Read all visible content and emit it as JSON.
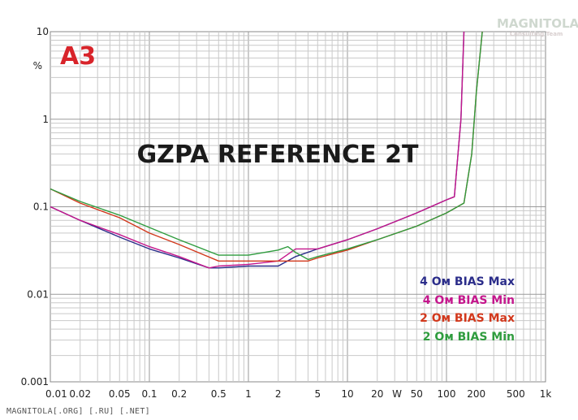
{
  "chart_data": {
    "type": "line",
    "title": "GZPA REFERENCE 2T",
    "xlabel": "W",
    "ylabel": "%",
    "x_scale": "log",
    "y_scale": "log",
    "xlim": [
      0.01,
      1000
    ],
    "ylim": [
      0.001,
      10
    ],
    "grid": true,
    "legend_position": "right-center",
    "x_ticks": [
      "0.01",
      "0.02",
      "0.05",
      "0.1",
      "0.2",
      "0.5",
      "1",
      "2",
      "5",
      "10",
      "20",
      "50",
      "100",
      "200",
      "500",
      "1k"
    ],
    "y_ticks": [
      "0.001",
      "0.01",
      "0.1",
      "1",
      "10"
    ],
    "series": [
      {
        "name": "4 Ом BIAS Max",
        "color": "#2b2d8a",
        "x": [
          0.01,
          0.02,
          0.05,
          0.1,
          0.2,
          0.4,
          0.5,
          1,
          2,
          3,
          5,
          10,
          20,
          50,
          100,
          120,
          140,
          150
        ],
        "y": [
          0.1,
          0.07,
          0.045,
          0.033,
          0.026,
          0.02,
          0.02,
          0.021,
          0.021,
          0.027,
          0.033,
          0.042,
          0.056,
          0.085,
          0.12,
          0.13,
          1.0,
          10
        ]
      },
      {
        "name": "4 Ом BIAS Min",
        "color": "#c4168c",
        "x": [
          0.01,
          0.02,
          0.05,
          0.1,
          0.2,
          0.4,
          0.5,
          1,
          2,
          3,
          5,
          10,
          20,
          50,
          100,
          120,
          140,
          150
        ],
        "y": [
          0.1,
          0.07,
          0.048,
          0.035,
          0.027,
          0.02,
          0.021,
          0.022,
          0.024,
          0.033,
          0.033,
          0.042,
          0.056,
          0.085,
          0.12,
          0.13,
          1.0,
          10
        ]
      },
      {
        "name": "2 Ом BIAS Max",
        "color": "#d2381c",
        "x": [
          0.01,
          0.02,
          0.05,
          0.1,
          0.2,
          0.5,
          1,
          2,
          3,
          4,
          5,
          10,
          20,
          50,
          100,
          150,
          180,
          200,
          230
        ],
        "y": [
          0.16,
          0.11,
          0.075,
          0.05,
          0.037,
          0.024,
          0.024,
          0.024,
          0.024,
          0.024,
          0.026,
          0.032,
          0.042,
          0.06,
          0.085,
          0.11,
          0.4,
          2.0,
          10
        ]
      },
      {
        "name": "2 Ом BIAS Min",
        "color": "#2f9c3e",
        "x": [
          0.01,
          0.02,
          0.05,
          0.1,
          0.2,
          0.5,
          1,
          2,
          2.5,
          3,
          4,
          5,
          10,
          20,
          50,
          100,
          150,
          180,
          200,
          230
        ],
        "y": [
          0.16,
          0.115,
          0.08,
          0.058,
          0.042,
          0.028,
          0.028,
          0.032,
          0.035,
          0.03,
          0.025,
          0.027,
          0.033,
          0.042,
          0.06,
          0.085,
          0.11,
          0.4,
          2.0,
          10
        ]
      }
    ],
    "logo_text": "A3",
    "watermark": "MAGNITOLA",
    "watermark_sub": "Consulting Team"
  },
  "footer": "MAGNITOLA[.ORG] [.RU] [.NET]"
}
